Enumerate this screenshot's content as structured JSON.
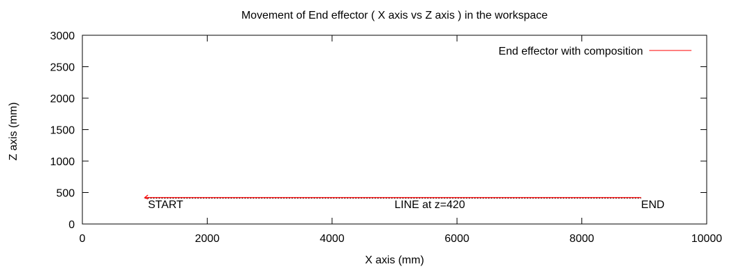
{
  "chart_data": {
    "type": "line",
    "title": "Movement of End effector ( X axis vs Z axis ) in the workspace",
    "xlabel": "X axis (mm)",
    "ylabel": "Z axis (mm)",
    "xlim": [
      0,
      10000
    ],
    "ylim": [
      0,
      3000
    ],
    "xticks": [
      0,
      2000,
      4000,
      6000,
      8000,
      10000
    ],
    "yticks": [
      0,
      500,
      1000,
      1500,
      2000,
      2500,
      3000
    ],
    "grid": false,
    "legend_position": "top-right",
    "series": [
      {
        "name": "End effector with composition",
        "color": "#ff0000",
        "x": [
          8950,
          1000,
          1050,
          1000,
          1050
        ],
        "y": [
          420,
          420,
          460,
          420,
          395
        ]
      }
    ],
    "annotations": [
      {
        "text": "START",
        "x": 1050,
        "y": 320,
        "anchor": "start"
      },
      {
        "text": "LINE at z=420",
        "x": 5000,
        "y": 320,
        "anchor": "start"
      },
      {
        "text": "END",
        "x": 8950,
        "y": 320,
        "anchor": "start"
      }
    ]
  }
}
